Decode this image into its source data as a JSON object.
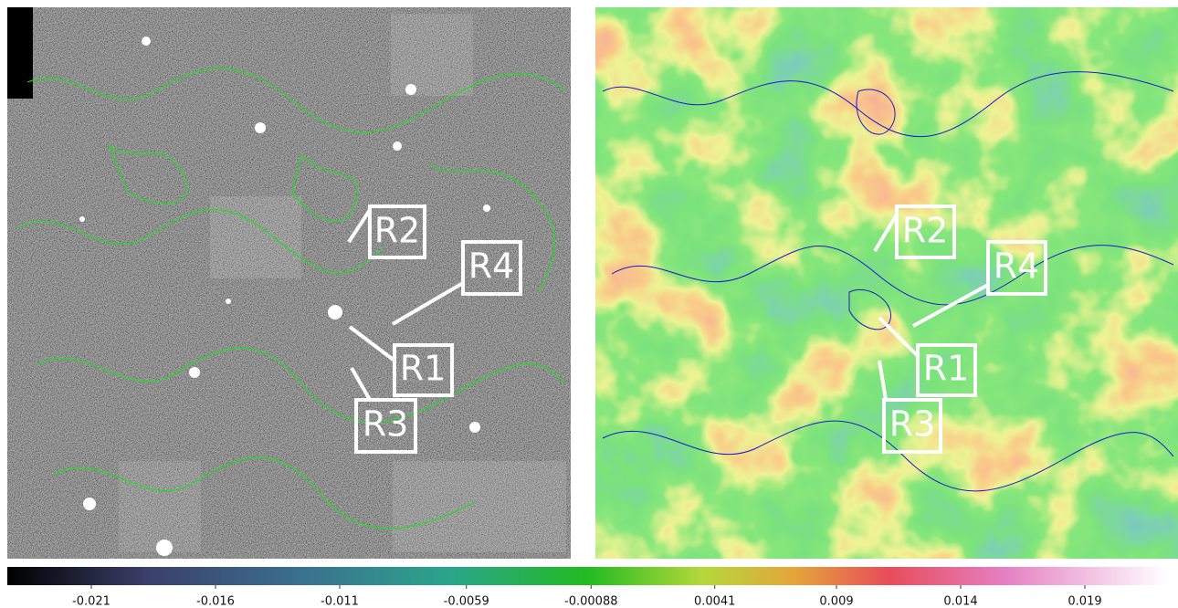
{
  "left_panel": {
    "labels": [
      "R1",
      "R2",
      "R3",
      "R4"
    ]
  },
  "right_panel": {
    "labels": [
      "R1",
      "R2",
      "R3",
      "R4"
    ]
  },
  "colorbar": {
    "ticks": [
      -0.021,
      -0.016,
      -0.011,
      -0.0059,
      -0.00088,
      0.0041,
      0.009,
      0.014,
      0.019
    ]
  }
}
